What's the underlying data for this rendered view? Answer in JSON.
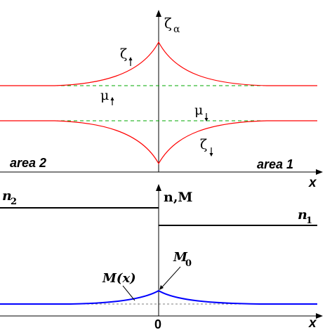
{
  "colors": {
    "zeta_curve": "#ff0000",
    "mu_level": "#00aa00",
    "step": "#000000",
    "magnetization": "#0000ff",
    "axes": "#000000"
  },
  "upper_panel": {
    "y_axis_label": "ζ",
    "y_axis_subscript": "α",
    "x_axis_label": "x",
    "zeta_up_label": "ζ",
    "zeta_down_label": "ζ",
    "mu_up_label": "μ",
    "mu_down_label": "μ",
    "region_left": "area 2",
    "region_right": "area 1"
  },
  "lower_panel": {
    "y_axis_label": "n,M",
    "x_axis_label": "x",
    "n_left": "n",
    "n_left_sub": "2",
    "n_right": "n",
    "n_right_sub": "1",
    "m_curve_label": "M(x)",
    "m_peak_label": "M",
    "m_peak_sub": "0",
    "origin_label": "0"
  }
}
